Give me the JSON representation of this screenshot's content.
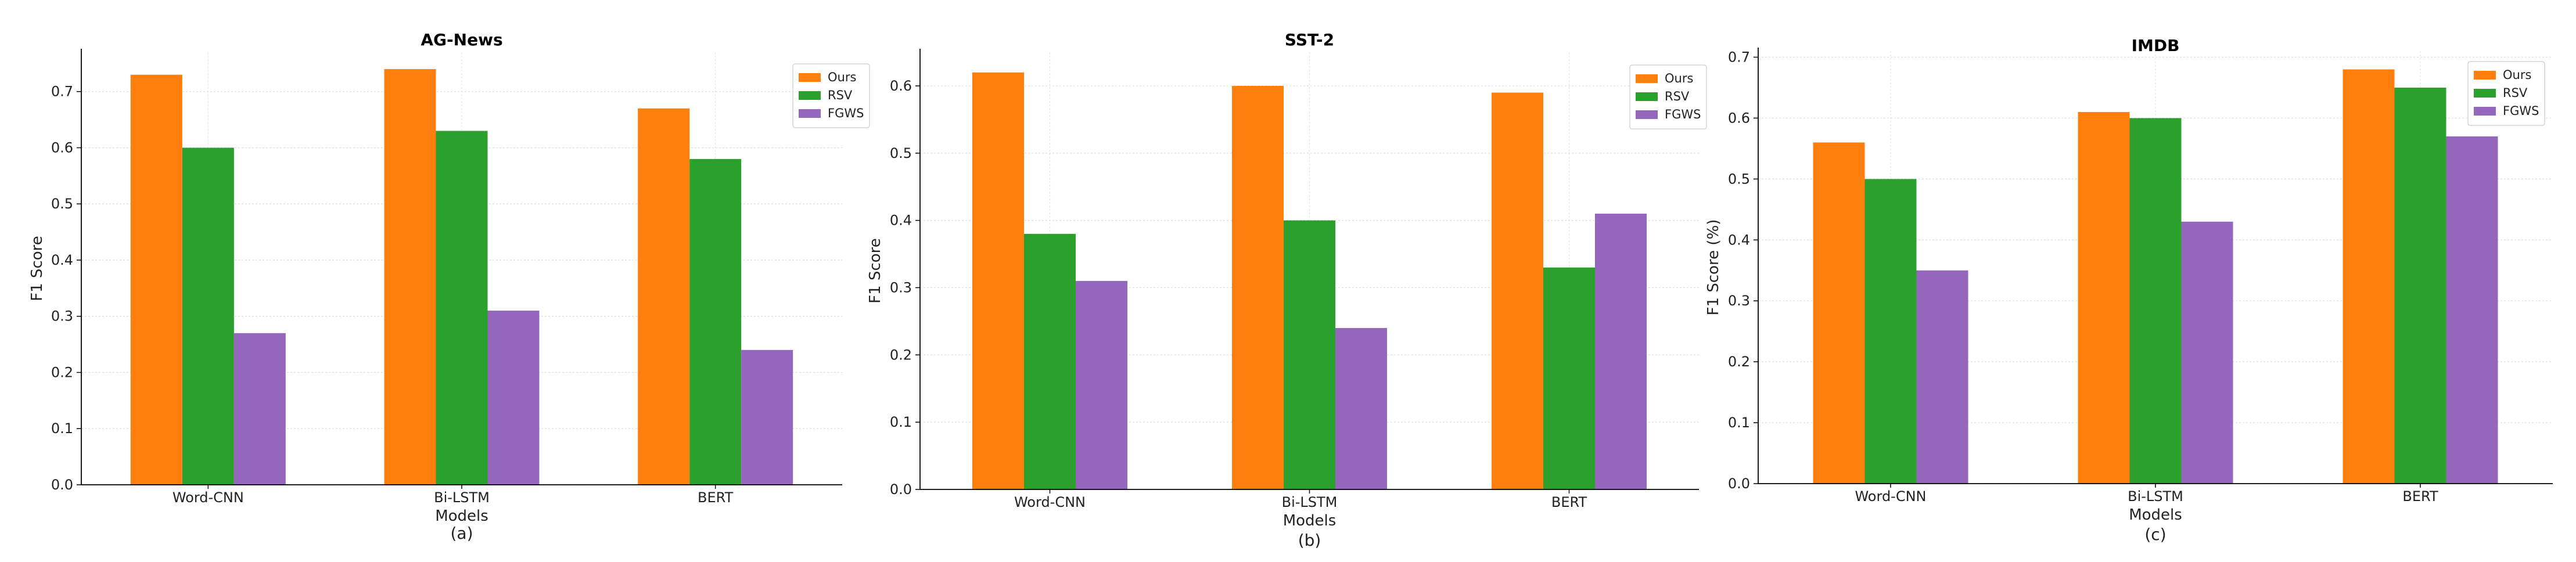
{
  "colors": {
    "Ours": "#ff7f0e",
    "RSV": "#2ca02c",
    "FGWS": "#9467bd"
  },
  "chart_data": [
    {
      "type": "bar",
      "title": "AG-News",
      "xlabel": "Models",
      "ylabel": "F1 Score",
      "caption": "(a)",
      "categories": [
        "Word-CNN",
        "Bi-LSTM",
        "BERT"
      ],
      "ylim": [
        0,
        0.77
      ],
      "yticks": [
        0.0,
        0.1,
        0.2,
        0.3,
        0.4,
        0.5,
        0.6,
        0.7
      ],
      "grid": true,
      "legend_position": "top-right",
      "series": [
        {
          "name": "Ours",
          "values": [
            0.73,
            0.74,
            0.67
          ]
        },
        {
          "name": "RSV",
          "values": [
            0.6,
            0.63,
            0.58
          ]
        },
        {
          "name": "FGWS",
          "values": [
            0.27,
            0.31,
            0.24
          ]
        }
      ]
    },
    {
      "type": "bar",
      "title": "SST-2",
      "xlabel": "Models",
      "ylabel": "F1 Score",
      "caption": "(b)",
      "categories": [
        "Word-CNN",
        "Bi-LSTM",
        "BERT"
      ],
      "ylim": [
        0,
        0.65
      ],
      "yticks": [
        0.0,
        0.1,
        0.2,
        0.3,
        0.4,
        0.5,
        0.6
      ],
      "grid": true,
      "legend_position": "top-right",
      "series": [
        {
          "name": "Ours",
          "values": [
            0.62,
            0.6,
            0.59
          ]
        },
        {
          "name": "RSV",
          "values": [
            0.38,
            0.4,
            0.33
          ]
        },
        {
          "name": "FGWS",
          "values": [
            0.31,
            0.24,
            0.41
          ]
        }
      ]
    },
    {
      "type": "bar",
      "title": "IMDB",
      "xlabel": "Models",
      "ylabel": "F1 Score (%)",
      "caption": "(c)",
      "categories": [
        "Word-CNN",
        "Bi-LSTM",
        "BERT"
      ],
      "ylim": [
        0,
        0.71
      ],
      "yticks": [
        0.0,
        0.1,
        0.2,
        0.3,
        0.4,
        0.5,
        0.6,
        0.7
      ],
      "grid": true,
      "legend_position": "top-right",
      "series": [
        {
          "name": "Ours",
          "values": [
            0.56,
            0.61,
            0.68
          ]
        },
        {
          "name": "RSV",
          "values": [
            0.5,
            0.6,
            0.65
          ]
        },
        {
          "name": "FGWS",
          "values": [
            0.35,
            0.43,
            0.57
          ]
        }
      ]
    }
  ]
}
